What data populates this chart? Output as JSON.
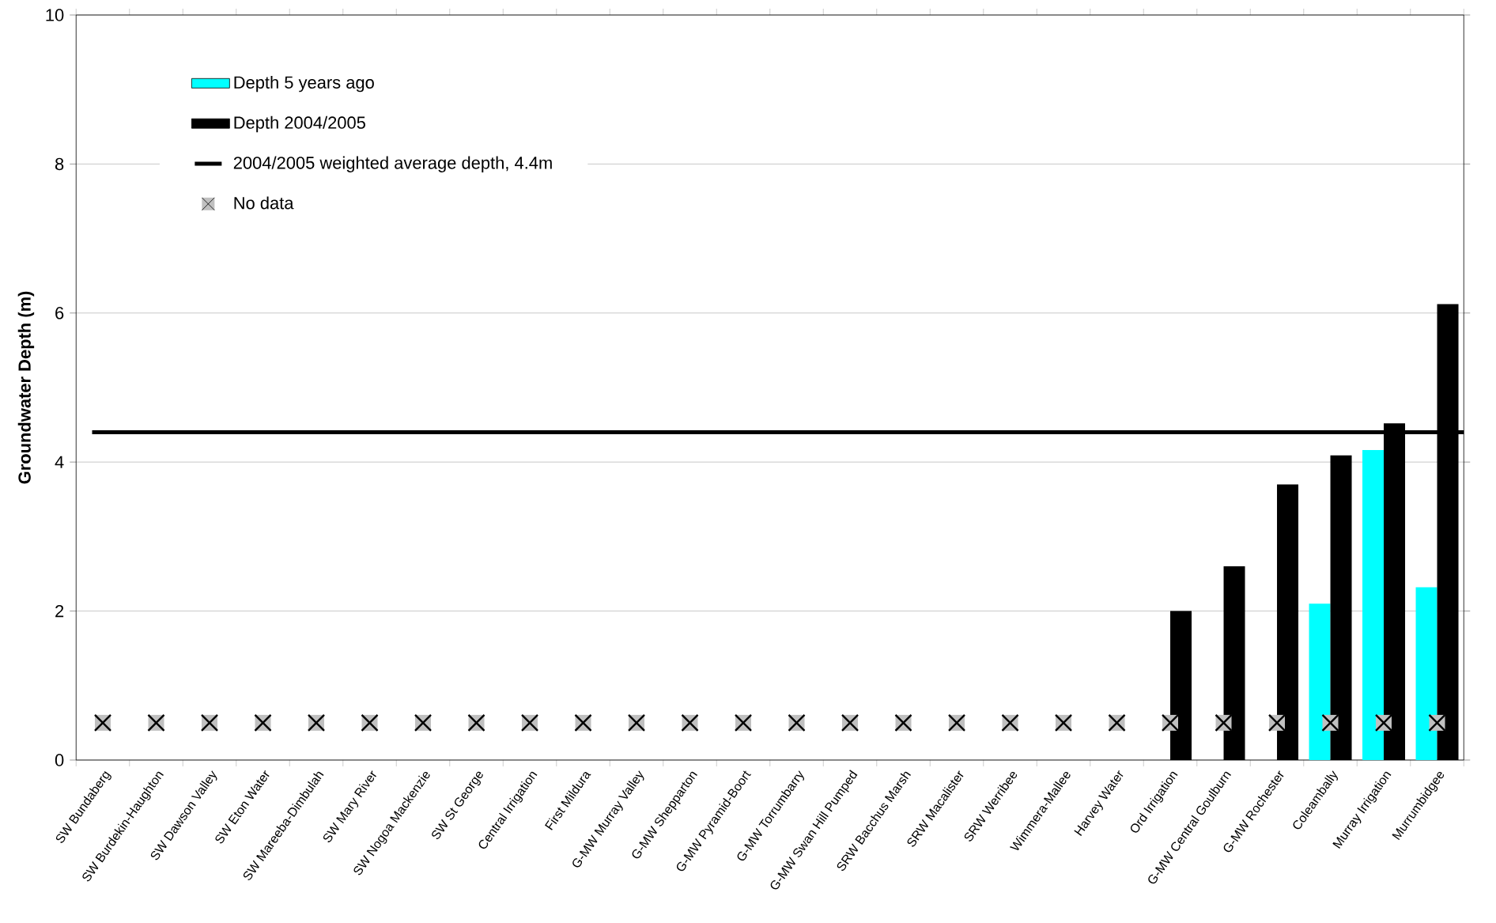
{
  "chart_data": {
    "type": "bar",
    "ylabel": "Groundwater Depth (m)",
    "categories": [
      "SW Bundaberg",
      "SW Burdekin-Haughton",
      "SW Dawson Valley",
      "SW Eton Water",
      "SW Mareeba-Dimbulah",
      "SW Mary River",
      "SW Nogoa Mackenzie",
      "SW St George",
      "Central Irrigation",
      "First Mildura",
      "G-MW Murray Valley",
      "G-MW Shepparton",
      "G-MW Pyramid-Boort",
      "G-MW Torrumbarry",
      "G-MW Swan Hill Pumped",
      "SRW  Bacchus Marsh",
      "SRW  Macalister",
      "SRW  Werribee",
      "Wimmera-Mallee",
      "Harvey Water",
      "Ord Irrigation",
      "G-MW Central Goulburn",
      "G-MW Rochester",
      "Coleambally",
      "Murray Irrigation",
      "Murrumbidgee"
    ],
    "series": [
      {
        "name": "Depth 5 years ago",
        "color": "#00ffff",
        "values": [
          null,
          null,
          null,
          null,
          null,
          null,
          null,
          null,
          null,
          null,
          null,
          null,
          null,
          null,
          null,
          null,
          null,
          null,
          null,
          null,
          null,
          null,
          null,
          2.1,
          4.16,
          2.32
        ]
      },
      {
        "name": "Depth 2004/2005",
        "color": "#000000",
        "values": [
          null,
          null,
          null,
          null,
          null,
          null,
          null,
          null,
          null,
          null,
          null,
          null,
          null,
          null,
          null,
          null,
          null,
          null,
          null,
          null,
          2.0,
          2.6,
          3.7,
          4.09,
          4.52,
          6.12
        ]
      },
      {
        "name": "No data",
        "type": "scatter",
        "marker": "square",
        "color": "#c0c0c0",
        "values": [
          0.5,
          0.5,
          0.5,
          0.5,
          0.5,
          0.5,
          0.5,
          0.5,
          0.5,
          0.5,
          0.5,
          0.5,
          0.5,
          0.5,
          0.5,
          0.5,
          0.5,
          0.5,
          0.5,
          0.5,
          0.5,
          0.5,
          0.5,
          0.5,
          0.5,
          0.5
        ]
      }
    ],
    "ref_lines": [
      {
        "axis": "y",
        "value": 4.4,
        "label": "2004/2005 weighted average depth, 4.4m",
        "color": "#000000"
      }
    ],
    "ylim": [
      0,
      10
    ],
    "yticks": [
      0,
      2,
      4,
      6,
      8,
      10
    ],
    "grid": "y",
    "legend": "top left"
  }
}
